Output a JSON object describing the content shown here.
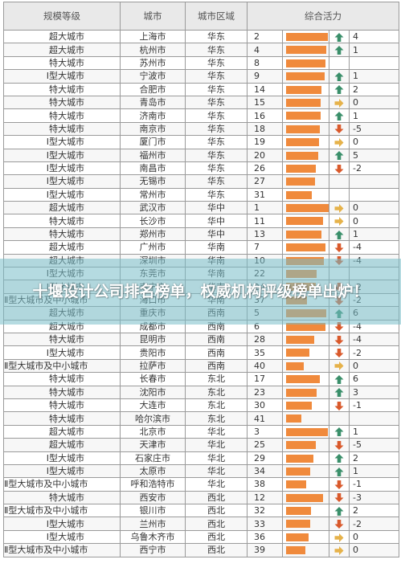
{
  "headers": {
    "level": "规模等级",
    "city": "城市",
    "region": "城市区域",
    "activity": "综合活力"
  },
  "colors": {
    "bar": "#f08a3c",
    "up": "#3a8f6a",
    "flat": "#e6b24a",
    "down": "#d9592b"
  },
  "banner": {
    "title": "十堰设计公司排名榜单，权威机构评级榜单出炉！"
  },
  "chart_data": {
    "type": "table",
    "bar_max": 45,
    "rows": [
      {
        "level": "超大城市",
        "city": "上海市",
        "region": "华东",
        "score": "2",
        "bar": 43,
        "trend": "up",
        "change": "4"
      },
      {
        "level": "超大城市",
        "city": "杭州市",
        "region": "华东",
        "score": "4",
        "bar": 42,
        "trend": "up",
        "change": "1"
      },
      {
        "level": "特大城市",
        "city": "苏州市",
        "region": "华东",
        "score": "8",
        "bar": 41,
        "trend": "none",
        "change": ""
      },
      {
        "level": "Ⅰ型大城市",
        "city": "宁波市",
        "region": "华东",
        "score": "9",
        "bar": 40,
        "trend": "up",
        "change": "1"
      },
      {
        "level": "特大城市",
        "city": "合肥市",
        "region": "华东",
        "score": "14",
        "bar": 37,
        "trend": "up",
        "change": "2"
      },
      {
        "level": "特大城市",
        "city": "青岛市",
        "region": "华东",
        "score": "15",
        "bar": 36,
        "trend": "flat",
        "change": "0"
      },
      {
        "level": "特大城市",
        "city": "济南市",
        "region": "华东",
        "score": "16",
        "bar": 36,
        "trend": "up",
        "change": "1"
      },
      {
        "level": "特大城市",
        "city": "南京市",
        "region": "华东",
        "score": "18",
        "bar": 35,
        "trend": "down",
        "change": "-5"
      },
      {
        "level": "Ⅰ型大城市",
        "city": "厦门市",
        "region": "华东",
        "score": "19",
        "bar": 34,
        "trend": "flat",
        "change": "0"
      },
      {
        "level": "Ⅰ型大城市",
        "city": "福州市",
        "region": "华东",
        "score": "20",
        "bar": 33,
        "trend": "up",
        "change": "5"
      },
      {
        "level": "Ⅰ型大城市",
        "city": "南昌市",
        "region": "华东",
        "score": "26",
        "bar": 31,
        "trend": "down",
        "change": "-2"
      },
      {
        "level": "Ⅰ型大城市",
        "city": "无锡市",
        "region": "华东",
        "score": "27",
        "bar": 30,
        "trend": "none",
        "change": ""
      },
      {
        "level": "Ⅰ型大城市",
        "city": "常州市",
        "region": "华东",
        "score": "31",
        "bar": 27,
        "trend": "none",
        "change": ""
      },
      {
        "level": "超大城市",
        "city": "武汉市",
        "region": "华中",
        "score": "1",
        "bar": 45,
        "trend": "flat",
        "change": "0"
      },
      {
        "level": "特大城市",
        "city": "长沙市",
        "region": "华中",
        "score": "11",
        "bar": 38,
        "trend": "flat",
        "change": "0"
      },
      {
        "level": "特大城市",
        "city": "郑州市",
        "region": "华中",
        "score": "13",
        "bar": 37,
        "trend": "up",
        "change": "1"
      },
      {
        "level": "超大城市",
        "city": "广州市",
        "region": "华南",
        "score": "7",
        "bar": 41,
        "trend": "down",
        "change": "-4"
      },
      {
        "level": "超大城市",
        "city": "深圳市",
        "region": "华南",
        "score": "10",
        "bar": 39,
        "trend": "down",
        "change": "-4"
      },
      {
        "level": "Ⅰ型大城市",
        "city": "东莞市",
        "region": "华南",
        "score": "22",
        "bar": 32,
        "trend": "none",
        "change": ""
      },
      {
        "level": "Ⅰ型大城市",
        "city": "南宁市",
        "region": "华南",
        "score": "24",
        "bar": 31,
        "trend": "down",
        "change": "-2"
      },
      {
        "level": "Ⅱ型大城市及中小城市",
        "city": "海口市",
        "region": "华南",
        "score": "37",
        "bar": 22,
        "trend": "down",
        "change": "-2"
      },
      {
        "level": "超大城市",
        "city": "重庆市",
        "region": "西南",
        "score": "5",
        "bar": 42,
        "trend": "up",
        "change": "6"
      },
      {
        "level": "超大城市",
        "city": "成都市",
        "region": "西南",
        "score": "6",
        "bar": 41,
        "trend": "down",
        "change": "-4"
      },
      {
        "level": "特大城市",
        "city": "昆明市",
        "region": "西南",
        "score": "28",
        "bar": 29,
        "trend": "down",
        "change": "-4"
      },
      {
        "level": "Ⅰ型大城市",
        "city": "贵阳市",
        "region": "西南",
        "score": "35",
        "bar": 24,
        "trend": "down",
        "change": "-2"
      },
      {
        "level": "Ⅱ型大城市及中小城市",
        "city": "拉萨市",
        "region": "西南",
        "score": "40",
        "bar": 18,
        "trend": "flat",
        "change": "0"
      },
      {
        "level": "特大城市",
        "city": "长春市",
        "region": "东北",
        "score": "17",
        "bar": 35,
        "trend": "up",
        "change": "6"
      },
      {
        "level": "特大城市",
        "city": "沈阳市",
        "region": "东北",
        "score": "23",
        "bar": 32,
        "trend": "up",
        "change": "3"
      },
      {
        "level": "特大城市",
        "city": "大连市",
        "region": "东北",
        "score": "30",
        "bar": 27,
        "trend": "down",
        "change": "-1"
      },
      {
        "level": "特大城市",
        "city": "哈尔滨市",
        "region": "东北",
        "score": "41",
        "bar": 16,
        "trend": "none",
        "change": ""
      },
      {
        "level": "超大城市",
        "city": "北京市",
        "region": "华北",
        "score": "3",
        "bar": 43,
        "trend": "up",
        "change": "1"
      },
      {
        "level": "超大城市",
        "city": "天津市",
        "region": "华北",
        "score": "25",
        "bar": 31,
        "trend": "down",
        "change": "-5"
      },
      {
        "level": "Ⅰ型大城市",
        "city": "石家庄市",
        "region": "华北",
        "score": "29",
        "bar": 28,
        "trend": "up",
        "change": "2"
      },
      {
        "level": "Ⅰ型大城市",
        "city": "太原市",
        "region": "华北",
        "score": "34",
        "bar": 25,
        "trend": "up",
        "change": "1"
      },
      {
        "level": "Ⅱ型大城市及中小城市",
        "city": "呼和浩特市",
        "region": "华北",
        "score": "38",
        "bar": 21,
        "trend": "down",
        "change": "-1"
      },
      {
        "level": "特大城市",
        "city": "西安市",
        "region": "西北",
        "score": "12",
        "bar": 38,
        "trend": "down",
        "change": "-3"
      },
      {
        "level": "Ⅱ型大城市及中小城市",
        "city": "银川市",
        "region": "西北",
        "score": "32",
        "bar": 26,
        "trend": "up",
        "change": "2"
      },
      {
        "level": "Ⅰ型大城市",
        "city": "兰州市",
        "region": "西北",
        "score": "33",
        "bar": 25,
        "trend": "down",
        "change": "-2"
      },
      {
        "level": "Ⅰ型大城市",
        "city": "乌鲁木齐市",
        "region": "西北",
        "score": "36",
        "bar": 23,
        "trend": "flat",
        "change": "0"
      },
      {
        "level": "Ⅱ型大城市及中小城市",
        "city": "西宁市",
        "region": "西北",
        "score": "39",
        "bar": 20,
        "trend": "flat",
        "change": "0"
      }
    ]
  }
}
